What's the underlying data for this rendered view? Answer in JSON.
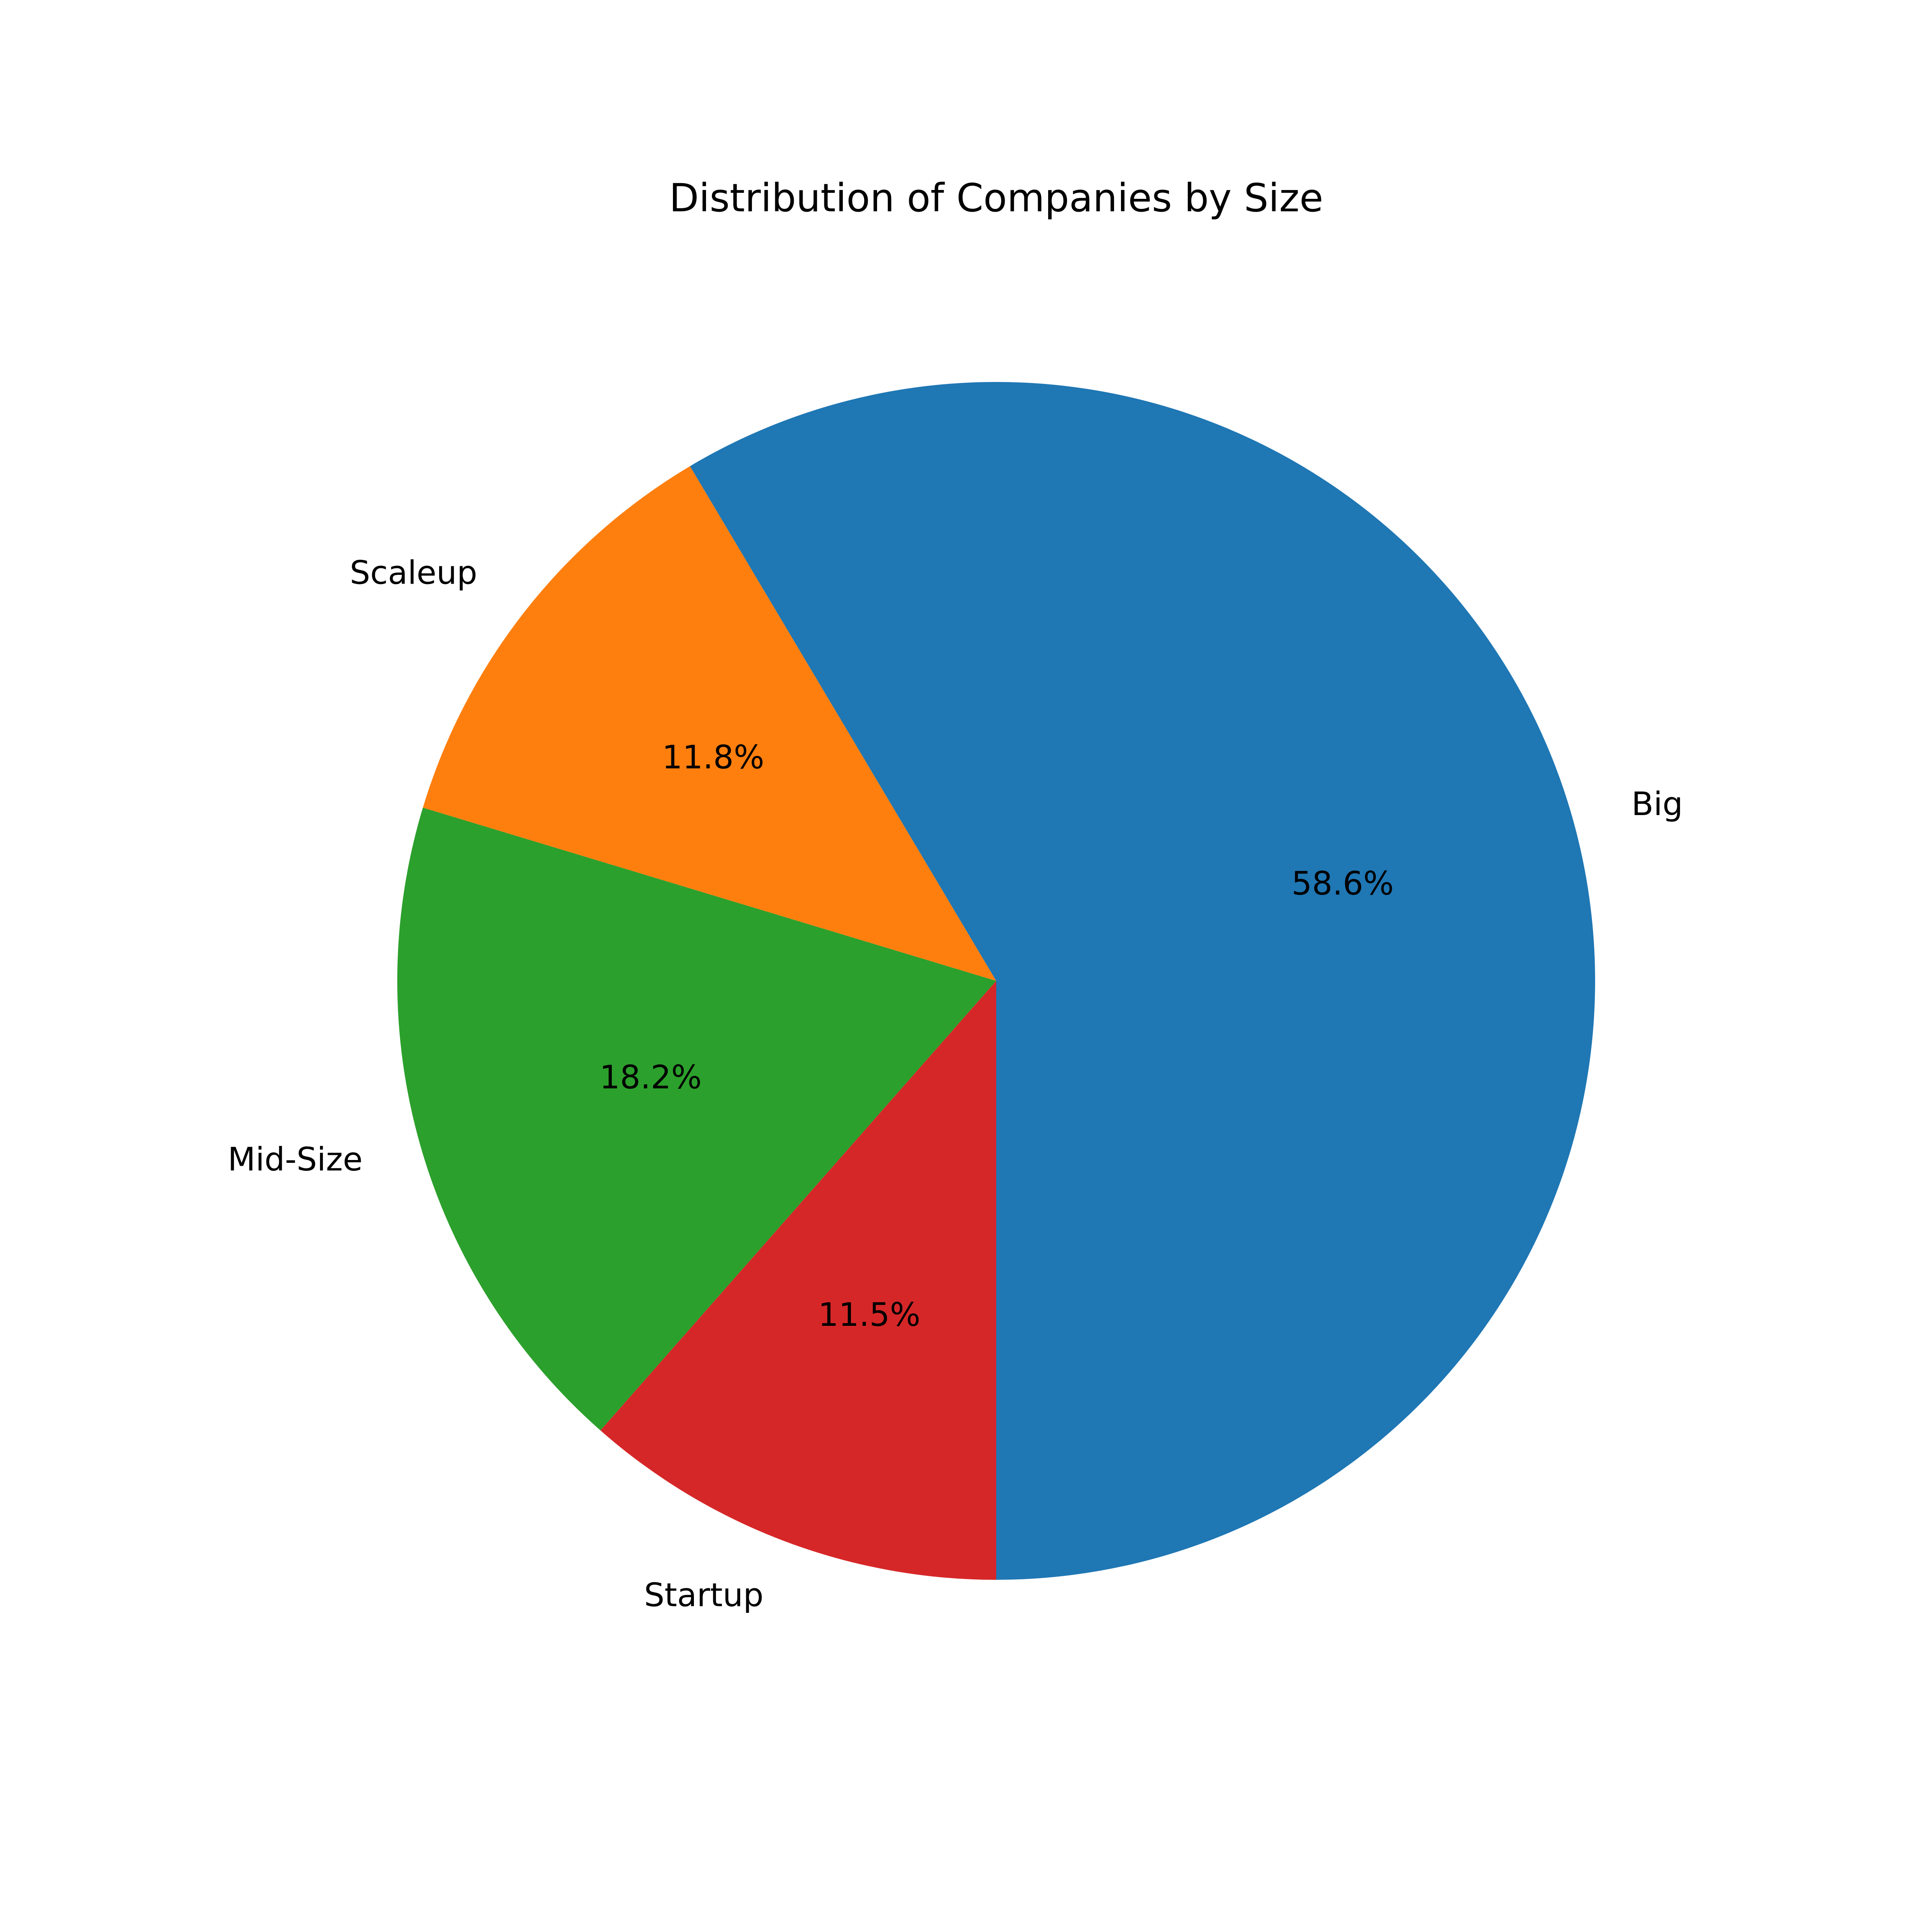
{
  "chart_data": {
    "type": "pie",
    "title": "Distribution of Companies by Size",
    "categories": [
      "Big",
      "Scaleup",
      "Mid-Size",
      "Startup"
    ],
    "values": [
      58.6,
      11.8,
      18.2,
      11.5
    ],
    "value_labels": [
      "58.6%",
      "11.8%",
      "18.2%",
      "11.5%"
    ],
    "colors": [
      "#1f77b4",
      "#ff7f0e",
      "#2ca02c",
      "#d62728"
    ],
    "start_angle_deg": -90,
    "direction": "counterclockwise",
    "legend": "none"
  }
}
